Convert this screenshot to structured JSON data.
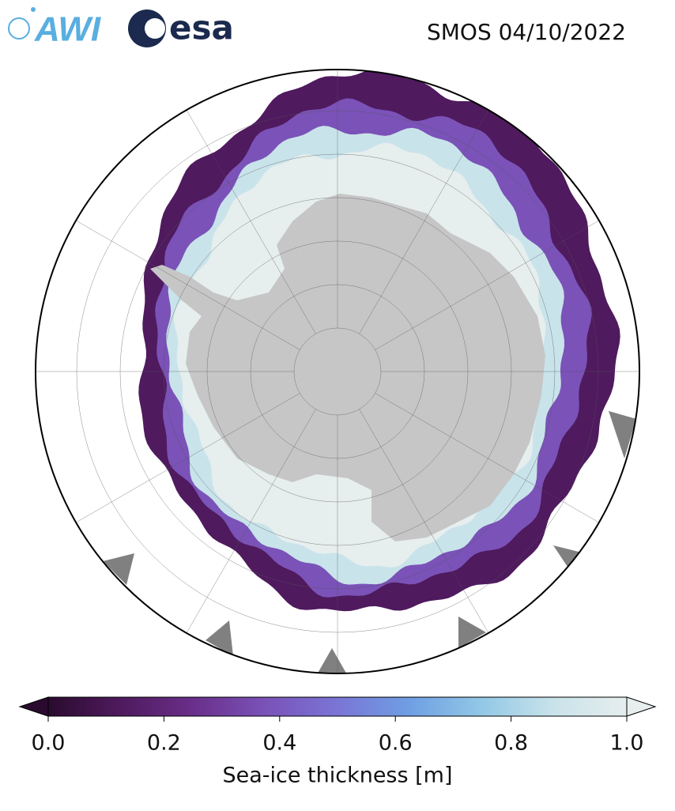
{
  "logos": [
    "AWI",
    "esa"
  ],
  "chart_data": {
    "type": "colorbar",
    "title": "SMOS 04/10/2022",
    "colorbar_label": "Sea-ice thickness [m]",
    "xlim": [
      0,
      1
    ],
    "xticks": [
      {
        "value": 0,
        "label": "0.0"
      },
      0.2,
      0.4,
      0.6,
      0.8,
      {
        "value": 1,
        "label": "1.0"
      }
    ],
    "colormap": [
      "#2a0b2f",
      "#4f1a5e",
      "#6a2f8a",
      "#7a52b8",
      "#7a75d6",
      "#6f9fe3",
      "#93c8e6",
      "#c9e3ea",
      "#e6eeee"
    ]
  }
}
